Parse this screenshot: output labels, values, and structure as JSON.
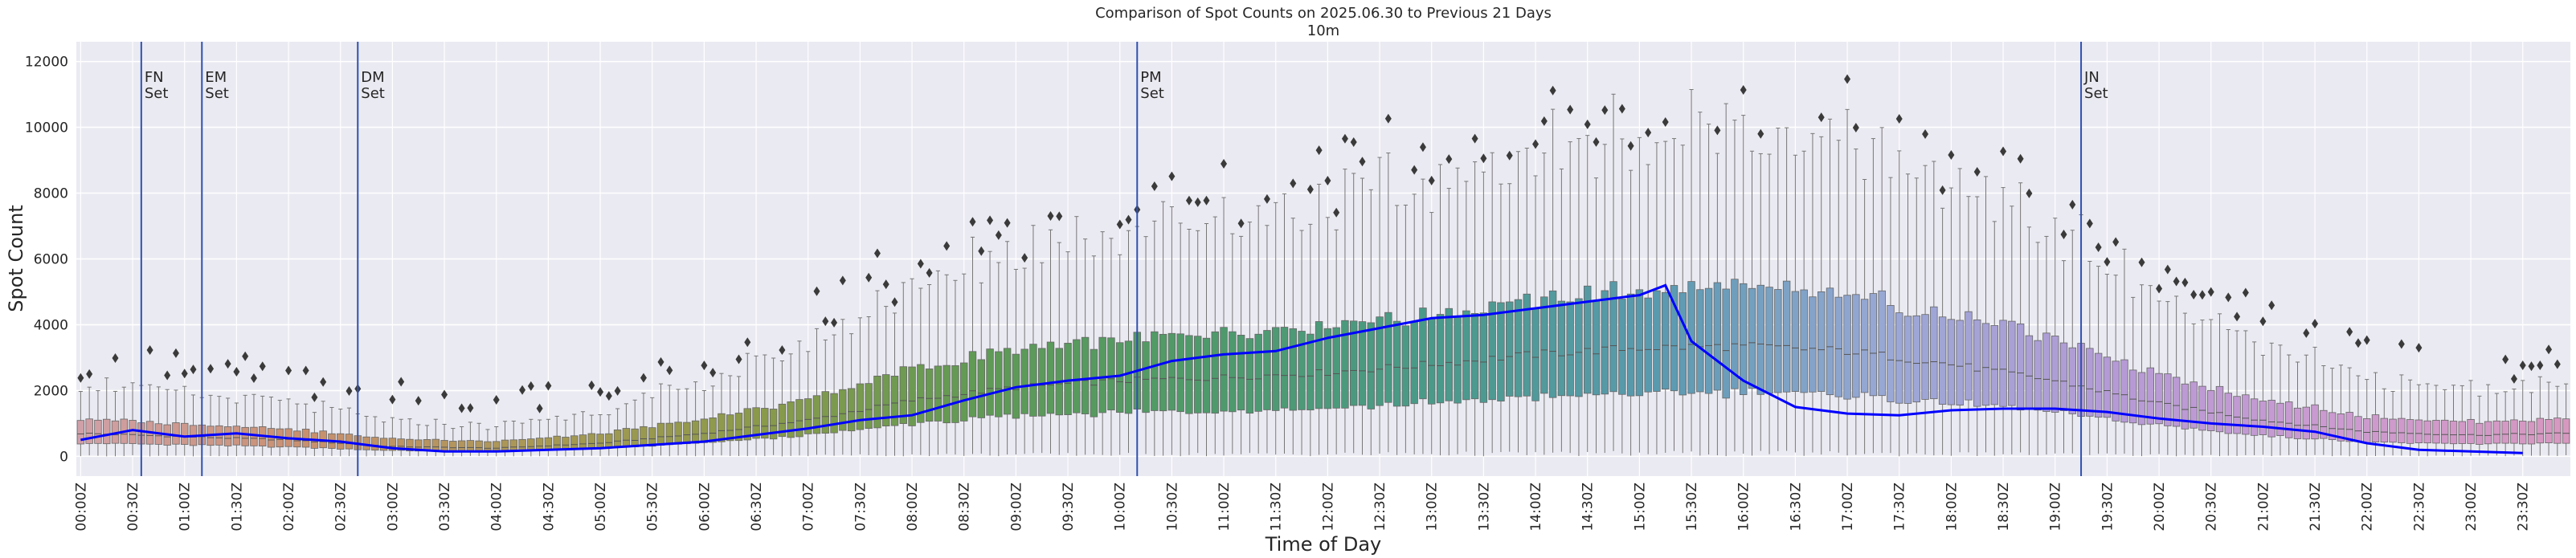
{
  "chart_data": {
    "type": "box",
    "title": "Comparison of Spot Counts on 2025.06.30 to Previous 21 Days",
    "subtitle": "10m",
    "xlabel": "Time of Day",
    "ylabel": "Spot Count",
    "ylim": [
      -600,
      12600
    ],
    "yticks": [
      0,
      2000,
      4000,
      6000,
      8000,
      10000,
      12000
    ],
    "bin_minutes": 5,
    "x_tick_labels": [
      "00:00Z",
      "00:30Z",
      "01:00Z",
      "01:30Z",
      "02:00Z",
      "02:30Z",
      "03:00Z",
      "03:30Z",
      "04:00Z",
      "04:30Z",
      "05:00Z",
      "05:30Z",
      "06:00Z",
      "06:30Z",
      "07:00Z",
      "07:30Z",
      "08:00Z",
      "08:30Z",
      "09:00Z",
      "09:30Z",
      "10:00Z",
      "10:30Z",
      "11:00Z",
      "11:30Z",
      "12:00Z",
      "12:30Z",
      "13:00Z",
      "13:30Z",
      "14:00Z",
      "14:30Z",
      "15:00Z",
      "15:30Z",
      "16:00Z",
      "16:30Z",
      "17:00Z",
      "17:30Z",
      "18:00Z",
      "18:30Z",
      "19:00Z",
      "19:30Z",
      "20:00Z",
      "20:30Z",
      "21:00Z",
      "21:30Z",
      "22:00Z",
      "22:30Z",
      "23:00Z",
      "23:30Z"
    ],
    "grid": true,
    "annotations": [
      {
        "time": "00:35Z",
        "line1": "FN",
        "line2": "Set"
      },
      {
        "time": "01:10Z",
        "line1": "EM",
        "line2": "Set"
      },
      {
        "time": "02:40Z",
        "line1": "DM",
        "line2": "Set"
      },
      {
        "time": "10:10Z",
        "line1": "PM",
        "line2": "Set"
      },
      {
        "time": "19:15Z",
        "line1": "JN",
        "line2": "Set"
      }
    ],
    "median_profile": {
      "times_hours": [
        0,
        1,
        2,
        3,
        4,
        5,
        6,
        7,
        8,
        9,
        10,
        11,
        12,
        13,
        14,
        15,
        16,
        17,
        18,
        19,
        20,
        21,
        22,
        23,
        24
      ],
      "values": [
        700,
        600,
        500,
        300,
        250,
        400,
        700,
        1100,
        1700,
        2100,
        2300,
        2400,
        2550,
        2800,
        3100,
        3300,
        3350,
        3200,
        2800,
        2300,
        1600,
        1100,
        750,
        650,
        700
      ]
    },
    "current_day_series": {
      "name": "2025.06.30",
      "color": "#0000ff",
      "times_hours": [
        0,
        0.5,
        1,
        1.5,
        2,
        2.5,
        3,
        3.5,
        4,
        4.5,
        5,
        5.5,
        6,
        6.5,
        7,
        7.5,
        8,
        8.5,
        9,
        9.5,
        10,
        10.5,
        11,
        11.5,
        12,
        12.5,
        13,
        13.5,
        14,
        14.5,
        15,
        15.25,
        15.5,
        16,
        16.5,
        17,
        17.5,
        18,
        18.5,
        19,
        19.5,
        20,
        20.5,
        21,
        21.5,
        22,
        22.5,
        23,
        23.5
      ],
      "values": [
        500,
        800,
        600,
        700,
        550,
        450,
        250,
        150,
        150,
        200,
        250,
        350,
        450,
        650,
        850,
        1100,
        1250,
        1700,
        2100,
        2300,
        2450,
        2900,
        3100,
        3200,
        3600,
        3900,
        4200,
        4300,
        4500,
        4700,
        4900,
        5200,
        3500,
        2300,
        1500,
        1300,
        1250,
        1400,
        1450,
        1450,
        1350,
        1150,
        1000,
        900,
        750,
        400,
        200,
        150,
        100
      ]
    },
    "palette": [
      "#d0a0a8",
      "#c9906f",
      "#a89855",
      "#8a9a4a",
      "#5f9a55",
      "#4e9a6b",
      "#4a9a8a",
      "#5a9ab0",
      "#9aa8d6",
      "#b59ad6",
      "#cc9ad0",
      "#d798c0"
    ]
  }
}
